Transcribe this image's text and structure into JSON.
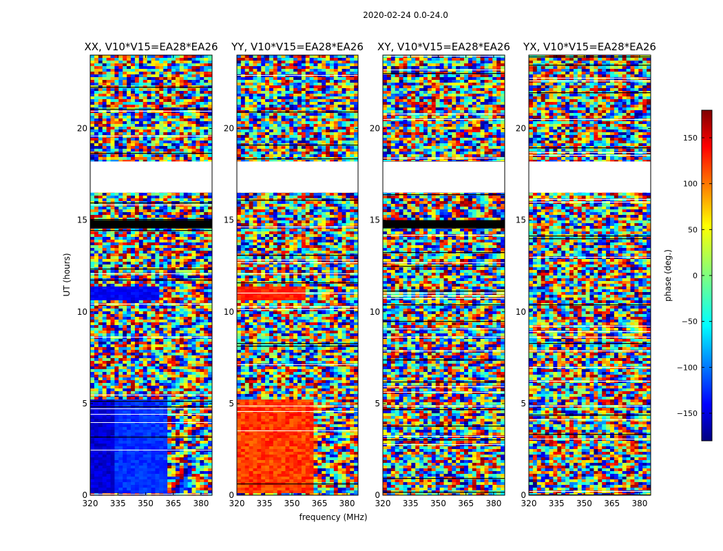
{
  "chart_data": {
    "type": "heatmap",
    "suptitle": "2020-02-24 0.0-24.0",
    "panels": [
      {
        "title": "XX, V10*V15=EA28*EA26",
        "product": "XX"
      },
      {
        "title": "YY, V10*V15=EA28*EA26",
        "product": "YY"
      },
      {
        "title": "XY, V10*V15=EA28*EA26",
        "product": "XY"
      },
      {
        "title": "YX, V10*V15=EA28*EA26",
        "product": "YX"
      }
    ],
    "xlabel": "frequency (MHz)",
    "ylabel": "UT (hours)",
    "xlim": [
      320,
      386
    ],
    "ylim": [
      0,
      24
    ],
    "xticks": [
      320,
      335,
      350,
      365,
      380
    ],
    "yticks": [
      0,
      5,
      10,
      15,
      20
    ],
    "colorbar": {
      "label": "phase (deg.)",
      "range": [
        -180,
        180
      ],
      "ticks": [
        150,
        100,
        50,
        0,
        -50,
        -100,
        -150
      ],
      "colormap": [
        "#00007f",
        "#0000ff",
        "#007fff",
        "#00ffff",
        "#7fff7f",
        "#ffff00",
        "#ff7f00",
        "#ff0000",
        "#7f0000"
      ]
    },
    "flagged_ut_ranges": [
      [
        16.5,
        18.2
      ]
    ],
    "no_data_ut_ranges_xx_xy": [
      [
        14.55,
        15.0
      ]
    ],
    "colors": {
      "flagged": "#ffffff",
      "no_data": "#000000",
      "frame": "#000000"
    }
  }
}
